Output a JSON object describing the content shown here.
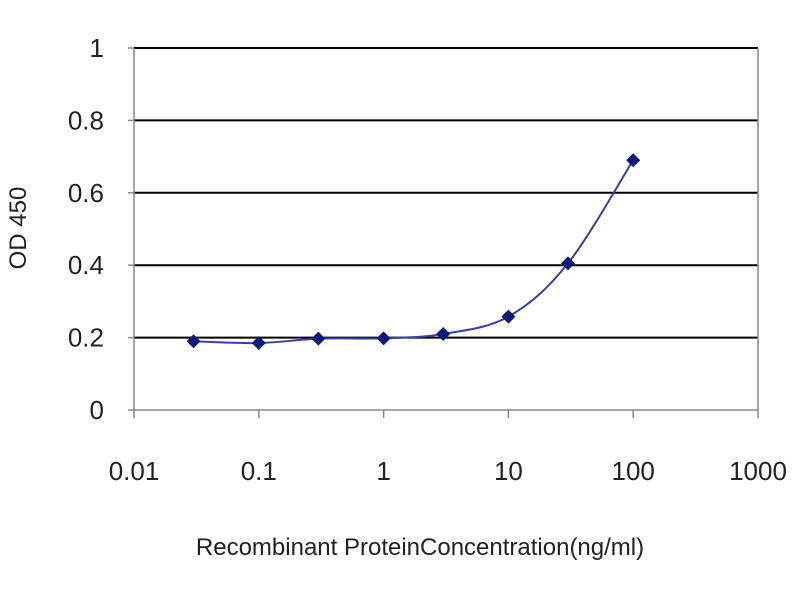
{
  "chart_data": {
    "type": "line",
    "title": "",
    "xlabel": "Recombinant ProteinConcentration(ng/ml)",
    "ylabel": "OD 450",
    "x_scale": "log",
    "xlim": [
      0.01,
      1000
    ],
    "ylim": [
      0,
      1
    ],
    "x_ticks": [
      "0.01",
      "0.1",
      "1",
      "10",
      "100",
      "1000"
    ],
    "y_ticks": [
      "0",
      "0.2",
      "0.4",
      "0.6",
      "0.8",
      "1"
    ],
    "grid": "horizontal",
    "legend": "none",
    "series": [
      {
        "x": [
          0.03,
          0.1,
          0.3,
          1,
          3,
          10,
          30,
          100
        ],
        "y": [
          0.19,
          0.185,
          0.197,
          0.198,
          0.21,
          0.258,
          0.405,
          0.69
        ]
      }
    ],
    "colors": {
      "line": "#3a3fa8",
      "marker": "#0d1a78",
      "grid": "#000000",
      "axis": "#888888"
    }
  }
}
